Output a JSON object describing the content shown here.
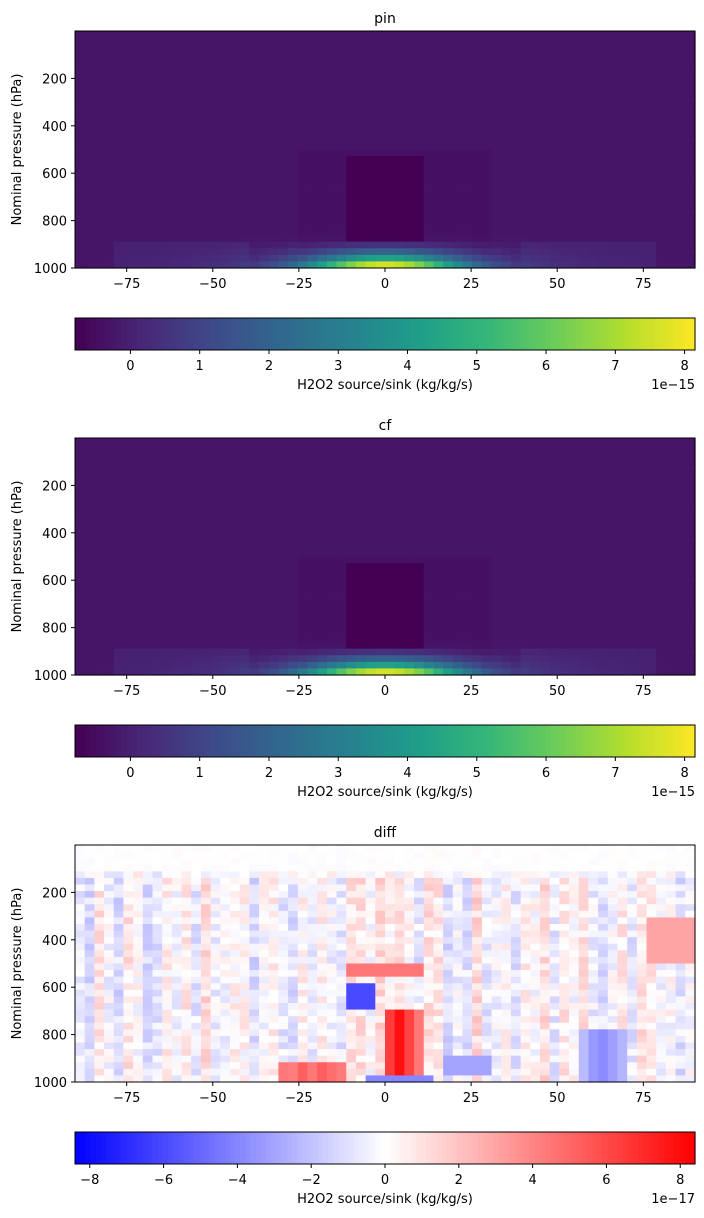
{
  "chart_data": [
    {
      "type": "heatmap",
      "title": "pin",
      "xlabel": "",
      "ylabel": "Nominal pressure (hPa)",
      "xlim": [
        -90,
        90
      ],
      "ylim": [
        1000,
        0
      ],
      "y_inverted": true,
      "xticks": [
        -75,
        -50,
        -25,
        0,
        25,
        50,
        75
      ],
      "yticks": [
        200,
        400,
        600,
        800,
        1000
      ],
      "colormap": "viridis",
      "colorbar": {
        "orientation": "horizontal",
        "label": "H2O2 source/sink (kg/kg/s)",
        "vmin": -0.8,
        "vmax": 8.15,
        "ticks": [
          0,
          1,
          2,
          3,
          4,
          5,
          6,
          7,
          8
        ],
        "offset_text": "1e−15"
      },
      "value_unit": "1e-15 kg/kg/s",
      "features": [
        {
          "description": "surface maximum",
          "lat": 0,
          "pressure": 1000,
          "value": 8.0
        },
        {
          "description": "low-level tropical band",
          "lat_range": [
            -30,
            30
          ],
          "pressure_range": [
            880,
            1000
          ],
          "value_range": [
            2,
            8
          ]
        },
        {
          "description": "tropical mid-level sink",
          "lat_range": [
            -10,
            12
          ],
          "pressure_range": [
            520,
            900
          ],
          "value": -0.8
        },
        {
          "description": "background",
          "value": -0.3
        }
      ]
    },
    {
      "type": "heatmap",
      "title": "cf",
      "xlabel": "",
      "ylabel": "Nominal pressure (hPa)",
      "xlim": [
        -90,
        90
      ],
      "ylim": [
        1000,
        0
      ],
      "y_inverted": true,
      "xticks": [
        -75,
        -50,
        -25,
        0,
        25,
        50,
        75
      ],
      "yticks": [
        200,
        400,
        600,
        800,
        1000
      ],
      "colormap": "viridis",
      "colorbar": {
        "orientation": "horizontal",
        "label": "H2O2 source/sink (kg/kg/s)",
        "vmin": -0.8,
        "vmax": 8.15,
        "ticks": [
          0,
          1,
          2,
          3,
          4,
          5,
          6,
          7,
          8
        ],
        "offset_text": "1e−15"
      },
      "value_unit": "1e-15 kg/kg/s",
      "features": [
        {
          "description": "surface maximum",
          "lat": 0,
          "pressure": 1000,
          "value": 8.0
        },
        {
          "description": "low-level tropical band",
          "lat_range": [
            -30,
            30
          ],
          "pressure_range": [
            880,
            1000
          ],
          "value_range": [
            2,
            8
          ]
        },
        {
          "description": "tropical mid-level sink",
          "lat_range": [
            -10,
            12
          ],
          "pressure_range": [
            520,
            900
          ],
          "value": -0.8
        },
        {
          "description": "background",
          "value": -0.3
        }
      ]
    },
    {
      "type": "heatmap",
      "title": "diff",
      "xlabel": "",
      "ylabel": "Nominal pressure (hPa)",
      "xlim": [
        -90,
        90
      ],
      "ylim": [
        1000,
        0
      ],
      "y_inverted": true,
      "xticks": [
        -75,
        -50,
        -25,
        0,
        25,
        50,
        75
      ],
      "yticks": [
        200,
        400,
        600,
        800,
        1000
      ],
      "colormap": "bwr",
      "colorbar": {
        "orientation": "horizontal",
        "label": "H2O2 source/sink (kg/kg/s)",
        "vmin": -8.4,
        "vmax": 8.4,
        "ticks": [
          -8,
          -6,
          -4,
          -2,
          0,
          2,
          4,
          6,
          8
        ],
        "offset_text": "1e−17"
      },
      "value_unit": "1e-17 kg/kg/s",
      "features": [
        {
          "description": "strong positive column",
          "lat_range": [
            0,
            10
          ],
          "pressure_range": [
            700,
            960
          ],
          "value": 8.0
        },
        {
          "description": "positive band",
          "lat_range": [
            -10,
            12
          ],
          "pressure_range": [
            510,
            560
          ],
          "value": 4.5
        },
        {
          "description": "negative column",
          "lat_range": [
            -12,
            -2
          ],
          "pressure_range": [
            580,
            700
          ],
          "value": -6.0
        },
        {
          "description": "positive near surface",
          "lat_range": [
            -30,
            -10
          ],
          "pressure_range": [
            930,
            1000
          ],
          "value": 6.0
        },
        {
          "description": "negative near surface",
          "lat_range": [
            -5,
            15
          ],
          "pressure_range": [
            960,
            1000
          ],
          "value": -4.0
        }
      ]
    }
  ]
}
